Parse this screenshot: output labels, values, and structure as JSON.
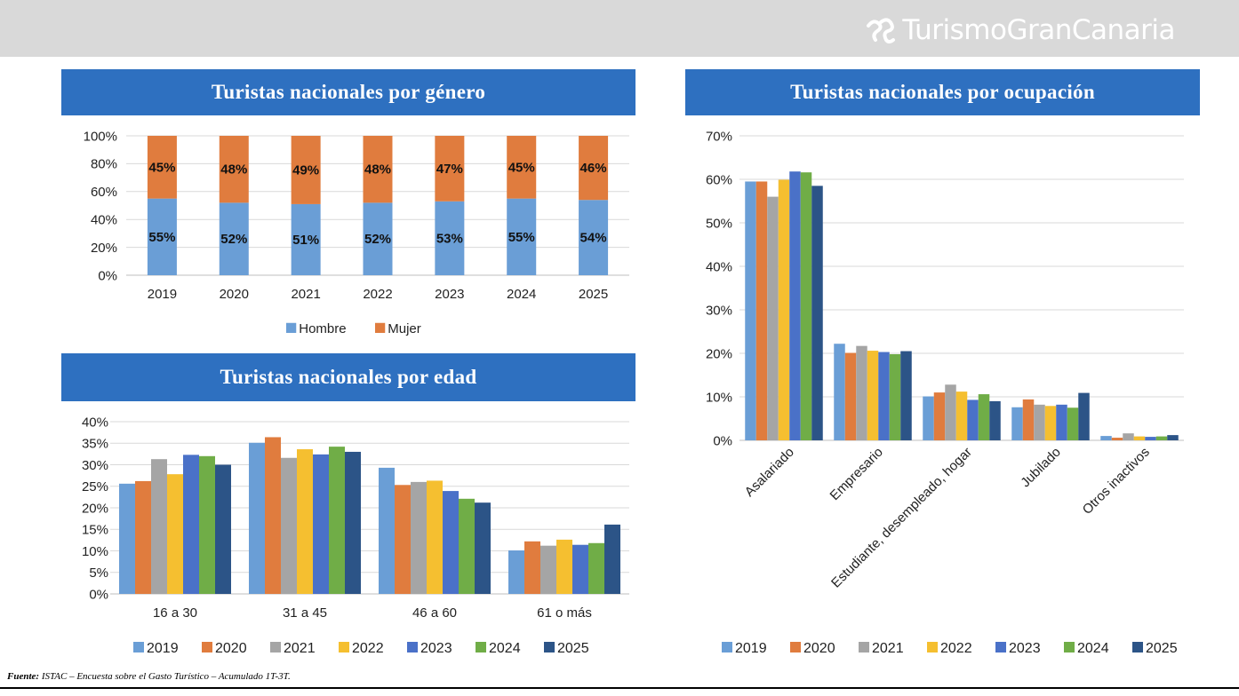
{
  "header": {
    "logo_text": "TurismoGranCanaria",
    "colors": {
      "bar": "#d9d9d9",
      "logo": "#ffffff"
    }
  },
  "colors": {
    "title_bg": "#2e70c0",
    "years": [
      "#6a9ed6",
      "#e07c3e",
      "#a5a5a5",
      "#f5bf30",
      "#4a71c8",
      "#70ad47",
      "#2c5487"
    ],
    "hombre": "#6a9ed6",
    "mujer": "#e07c3e"
  },
  "chart_data": [
    {
      "id": "genero",
      "type": "bar",
      "stacked": true,
      "title": "Turistas nacionales por género",
      "categories": [
        "2019",
        "2020",
        "2021",
        "2022",
        "2023",
        "2024",
        "2025"
      ],
      "series": [
        {
          "name": "Hombre",
          "values": [
            55,
            52,
            51,
            52,
            53,
            55,
            54
          ],
          "labels": [
            "55%",
            "52%",
            "51%",
            "52%",
            "53%",
            "55%",
            "54%"
          ]
        },
        {
          "name": "Mujer",
          "values": [
            45,
            48,
            49,
            48,
            47,
            45,
            46
          ],
          "labels": [
            "45%",
            "48%",
            "49%",
            "48%",
            "47%",
            "45%",
            "46%"
          ]
        }
      ],
      "ylim": [
        0,
        100
      ],
      "yticks": [
        "0%",
        "20%",
        "40%",
        "60%",
        "80%",
        "100%"
      ],
      "legend": "bottom",
      "grid": true
    },
    {
      "id": "edad",
      "type": "bar",
      "title": "Turistas nacionales por edad",
      "categories": [
        "16 a 30",
        "31 a 45",
        "46 a 60",
        "61 o más"
      ],
      "series": [
        {
          "name": "2019",
          "values": [
            25.6,
            35.1,
            29.3,
            10.1
          ]
        },
        {
          "name": "2020",
          "values": [
            26.2,
            36.4,
            25.3,
            12.2
          ]
        },
        {
          "name": "2021",
          "values": [
            31.3,
            31.6,
            26.0,
            11.2
          ]
        },
        {
          "name": "2022",
          "values": [
            27.8,
            33.6,
            26.3,
            12.6
          ]
        },
        {
          "name": "2023",
          "values": [
            32.3,
            32.4,
            23.9,
            11.4
          ]
        },
        {
          "name": "2024",
          "values": [
            32.0,
            34.2,
            22.1,
            11.8
          ]
        },
        {
          "name": "2025",
          "values": [
            30.0,
            33.0,
            21.2,
            16.1
          ]
        }
      ],
      "ylim": [
        0,
        40
      ],
      "yticks": [
        "0%",
        "5%",
        "10%",
        "15%",
        "20%",
        "25%",
        "30%",
        "35%",
        "40%"
      ],
      "legend": "bottom",
      "grid": true
    },
    {
      "id": "ocupacion",
      "type": "bar",
      "title": "Turistas nacionales por ocupación",
      "categories": [
        "Asalariado",
        "Empresario",
        "Estudiante, desempleado, hogar",
        "Jubilado",
        "Otros inactivos"
      ],
      "series": [
        {
          "name": "2019",
          "values": [
            59.5,
            22.2,
            10.1,
            7.6,
            1.0
          ]
        },
        {
          "name": "2020",
          "values": [
            59.5,
            20.1,
            11.0,
            9.4,
            0.6
          ]
        },
        {
          "name": "2021",
          "values": [
            56.0,
            21.7,
            12.8,
            8.2,
            1.6
          ]
        },
        {
          "name": "2022",
          "values": [
            59.9,
            20.6,
            11.2,
            7.9,
            0.9
          ]
        },
        {
          "name": "2023",
          "values": [
            61.8,
            20.3,
            9.3,
            8.2,
            0.8
          ]
        },
        {
          "name": "2024",
          "values": [
            61.6,
            19.8,
            10.6,
            7.5,
            0.9
          ]
        },
        {
          "name": "2025",
          "values": [
            58.5,
            20.5,
            9.0,
            10.9,
            1.2
          ]
        }
      ],
      "ylim": [
        0,
        70
      ],
      "yticks": [
        "0%",
        "10%",
        "20%",
        "30%",
        "40%",
        "50%",
        "60%",
        "70%"
      ],
      "legend": "bottom",
      "grid": true
    }
  ],
  "footer": {
    "source_label": "Fuente:",
    "source_text": " ISTAC – Encuesta sobre el Gasto Turístico – Acumulado 1T-3T."
  }
}
